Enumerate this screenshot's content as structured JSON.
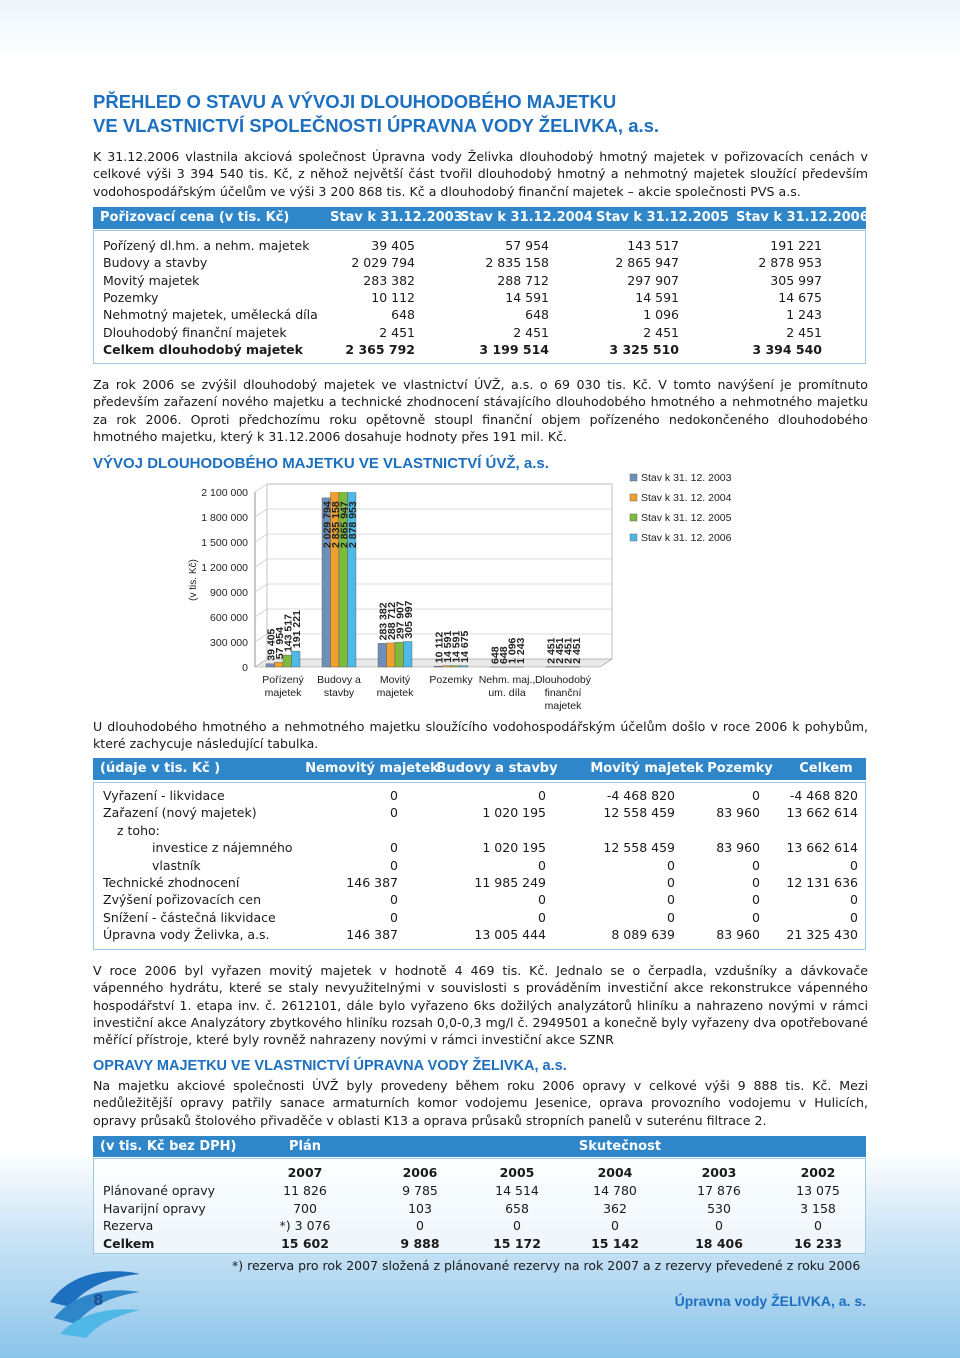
{
  "header": {
    "title": [
      "PŘEHLED O STAVU A VÝVOJI DLOUHODOBÉHO MAJETKU",
      "VE VLASTNICTVÍ SPOLEČNOSTI ÚPRAVNA VODY ŽELIVKA, a.s."
    ]
  },
  "intro": "K 31.12.2006 vlastnila akciová společnost Úpravna vody Želivka dlouhodobý hmotný majetek v pořizovacích cenách v celkové výši 3 394 540 tis. Kč, z něhož největší část tvořil dlouhodobý hmotný a nehmotný majetek sloužící především vodohospodářským účelům ve výši 3 200 868 tis. Kč a dlouhodobý finanční majetek – akcie společnosti PVS a.s.",
  "table1": {
    "headers": [
      "Pořizovací cena (v tis. Kč)",
      "Stav k 31.12.2003",
      "Stav k 31.12.2004",
      "Stav k 31.12.2005",
      "Stav k 31.12.2006"
    ],
    "rows": [
      [
        "Pořízený dl.hm. a nehm. majetek",
        "39 405",
        "57 954",
        "143 517",
        "191 221"
      ],
      [
        "Budovy a stavby",
        "2 029 794",
        "2 835 158",
        "2 865 947",
        "2 878 953"
      ],
      [
        "Movitý majetek",
        "283 382",
        "288 712",
        "297 907",
        "305 997"
      ],
      [
        "Pozemky",
        "10 112",
        "14 591",
        "14 591",
        "14 675"
      ],
      [
        "Nehmotný majetek, umělecká díla",
        "648",
        "648",
        "1 096",
        "1 243"
      ],
      [
        "Dlouhodobý finanční majetek",
        "2 451",
        "2 451",
        "2 451",
        "2 451"
      ],
      [
        "Celkem dlouhodobý majetek",
        "2 365 792",
        "3 199 514",
        "3 325 510",
        "3 394 540"
      ]
    ]
  },
  "paragraph2": "Za rok 2006 se zvýšil dlouhodobý majetek ve vlastnictví ÚVŽ, a.s. o 69 030 tis. Kč. V tomto navýšení je promítnuto především zařazení nového majetku a technické zhodnocení stávajícího dlouhodobého hmotného a nehmotného majetku za rok 2006. Oproti předchozímu roku opětovně stoupl finanční objem pořízeného nedokončeného dlouhodobého hmotného majetku, který k 31.12.2006 dosahuje hodnoty přes 191 mil. Kč.",
  "chart_data": {
    "type": "bar",
    "title": "VÝVOJ DLOUHODOBÉHO MAJETKU VE VLASTNICTVÍ ÚVŽ, a.s.",
    "y_label": "(v tis. Kč)",
    "categories": [
      "Pořízený majetek",
      "Budovy a stavby",
      "Movitý majetek",
      "Pozemky",
      "Nehm. maj., um. díla",
      "Dlouhodobý finanční majetek"
    ],
    "series": [
      {
        "name": "Stav k 31. 12. 2003",
        "color": "#6f8fb8",
        "values": [
          39405,
          2029794,
          283382,
          10112,
          648,
          2451
        ],
        "value_labels": [
          "39 405",
          "2 029 794",
          "283 382",
          "10 112",
          "648",
          "2 451"
        ]
      },
      {
        "name": "Stav k 31. 12. 2004",
        "color": "#f0a030",
        "values": [
          57954,
          2835158,
          288712,
          14591,
          648,
          2451
        ],
        "value_labels": [
          "57 954",
          "2 835 158",
          "288 712",
          "14 591",
          "648",
          "2 451"
        ]
      },
      {
        "name": "Stav k 31. 12. 2005",
        "color": "#7dbb3c",
        "values": [
          143517,
          2865947,
          297907,
          14591,
          1096,
          2451
        ],
        "value_labels": [
          "143 517",
          "2 865 947",
          "297 907",
          "14 591",
          "1 096",
          "2 451"
        ]
      },
      {
        "name": "Stav k 31. 12. 2006",
        "color": "#4fb8e6",
        "values": [
          191221,
          2878953,
          305997,
          14675,
          1243,
          2451
        ],
        "value_labels": [
          "191 221",
          "2 878 953",
          "305 997",
          "14 675",
          "1 243",
          "2 451"
        ]
      }
    ],
    "ylim": [
      0,
      2100000
    ],
    "yticks": [
      0,
      {
        "value": 300000,
        "label": "300 000"
      },
      {
        "value": 600000,
        "label": "600 000"
      },
      {
        "value": 900000,
        "label": "900 000"
      },
      {
        "value": 1200000,
        "label": "1 200 000"
      },
      {
        "value": 1500000,
        "label": "1 500 000"
      },
      {
        "value": 1800000,
        "label": "1 800 000"
      },
      {
        "value": 2100000,
        "label": "2 100 000"
      }
    ],
    "grid": true,
    "legend": "right"
  },
  "paragraph3": "U dlouhodobého hmotného a nehmotného majetku sloužícího vodohospodářským účelům došlo v roce 2006 k pohybům, které zachycuje následující tabulka.",
  "table2": {
    "headers": [
      "(údaje v tis. Kč )",
      "Nemovitý majetek",
      "Budovy a stavby",
      "Movitý majetek",
      "Pozemky",
      "Celkem"
    ],
    "rows": [
      [
        "Vyřazení - likvidace",
        "0",
        "0",
        "-4 468 820",
        "0",
        "-4 468 820"
      ],
      [
        "Zařazení (nový majetek)",
        "0",
        "1 020 195",
        "12 558 459",
        "83 960",
        "13 662 614"
      ],
      [
        "z toho:"
      ],
      [
        "investice z nájemného",
        "0",
        "1 020 195",
        "12 558 459",
        "83 960",
        "13 662 614"
      ],
      [
        "vlastník",
        "0",
        "0",
        "0",
        "0",
        "0"
      ],
      [
        "Technické zhodnocení",
        "146 387",
        "11 985 249",
        "0",
        "0",
        "12 131 636"
      ],
      [
        "Zvýšení pořizovacích cen",
        "0",
        "0",
        "0",
        "0",
        "0"
      ],
      [
        "Snížení - částečná likvidace",
        "0",
        "0",
        "0",
        "0",
        "0"
      ],
      [
        "Úpravna vody Želivka, a.s.",
        "146 387",
        "13 005 444",
        "8 089 639",
        "83 960",
        "21 325 430"
      ]
    ]
  },
  "paragraph4": "V roce 2006 byl vyřazen movitý majetek  v hodnotě 4 469 tis. Kč. Jednalo se o čerpadla, vzdušníky a dávkovače vápenného hydrátu, které se staly nevyužitelnými v souvislosti s prováděním investiční akce rekonstrukce vápenného hospodářství 1. etapa inv. č. 2612101, dále bylo vyřazeno 6ks dožilých analyzátorů hliníku a nahrazeno novými v rámci  investiční akce Analyzátory zbytkového hliníku rozsah 0,0-0,3 mg/l  č. 2949501 a konečně byly vyřazeny dva opotřebované  měřící přístroje, které byly rovněž  nahrazeny novými v rámci investiční akce SZNR",
  "heading2": "OPRAVY MAJETKU VE VLASTNICTVÍ ÚPRAVNA VODY ŽELIVKA, a.s.",
  "paragraph5": "Na majetku akciové společnosti ÚVŽ byly provedeny během roku 2006 opravy  v celkové výši 9 888 tis. Kč. Mezi nedůležitější opravy patřily sanace armaturních komor  vodojemu Jesenice, oprava provozního vodojemu v Hulicích,  opravy průsaků štolového přivaděče v oblasti K13 a oprava průsaků stropních panelů v suterénu filtrace 2.",
  "table3": {
    "headers": [
      "(v tis. Kč bez DPH)",
      "Plán",
      "Skutečnost"
    ],
    "years": [
      "2007",
      "2006",
      "2005",
      "2004",
      "2003",
      "2002"
    ],
    "rows": [
      [
        "Plánované opravy",
        "11 826",
        "9 785",
        "14 514",
        "14 780",
        "17 876",
        "13 075"
      ],
      [
        "Havarijní opravy",
        "700",
        "103",
        "658",
        "362",
        "530",
        "3 158"
      ],
      [
        "Rezerva",
        "*) 3 076",
        "0",
        "0",
        "0",
        "0",
        "0"
      ],
      [
        "Celkem",
        "15 602",
        "9 888",
        "15 172",
        "15 142",
        "18 406",
        "16 233"
      ]
    ]
  },
  "footnote": "*) rezerva  pro rok 2007 složená z plánované rezervy na rok 2007 a z rezervy převedené z roku 2006",
  "footer": {
    "page": "8",
    "company": "Úpravna vody ŽELIVKA, a. s."
  }
}
